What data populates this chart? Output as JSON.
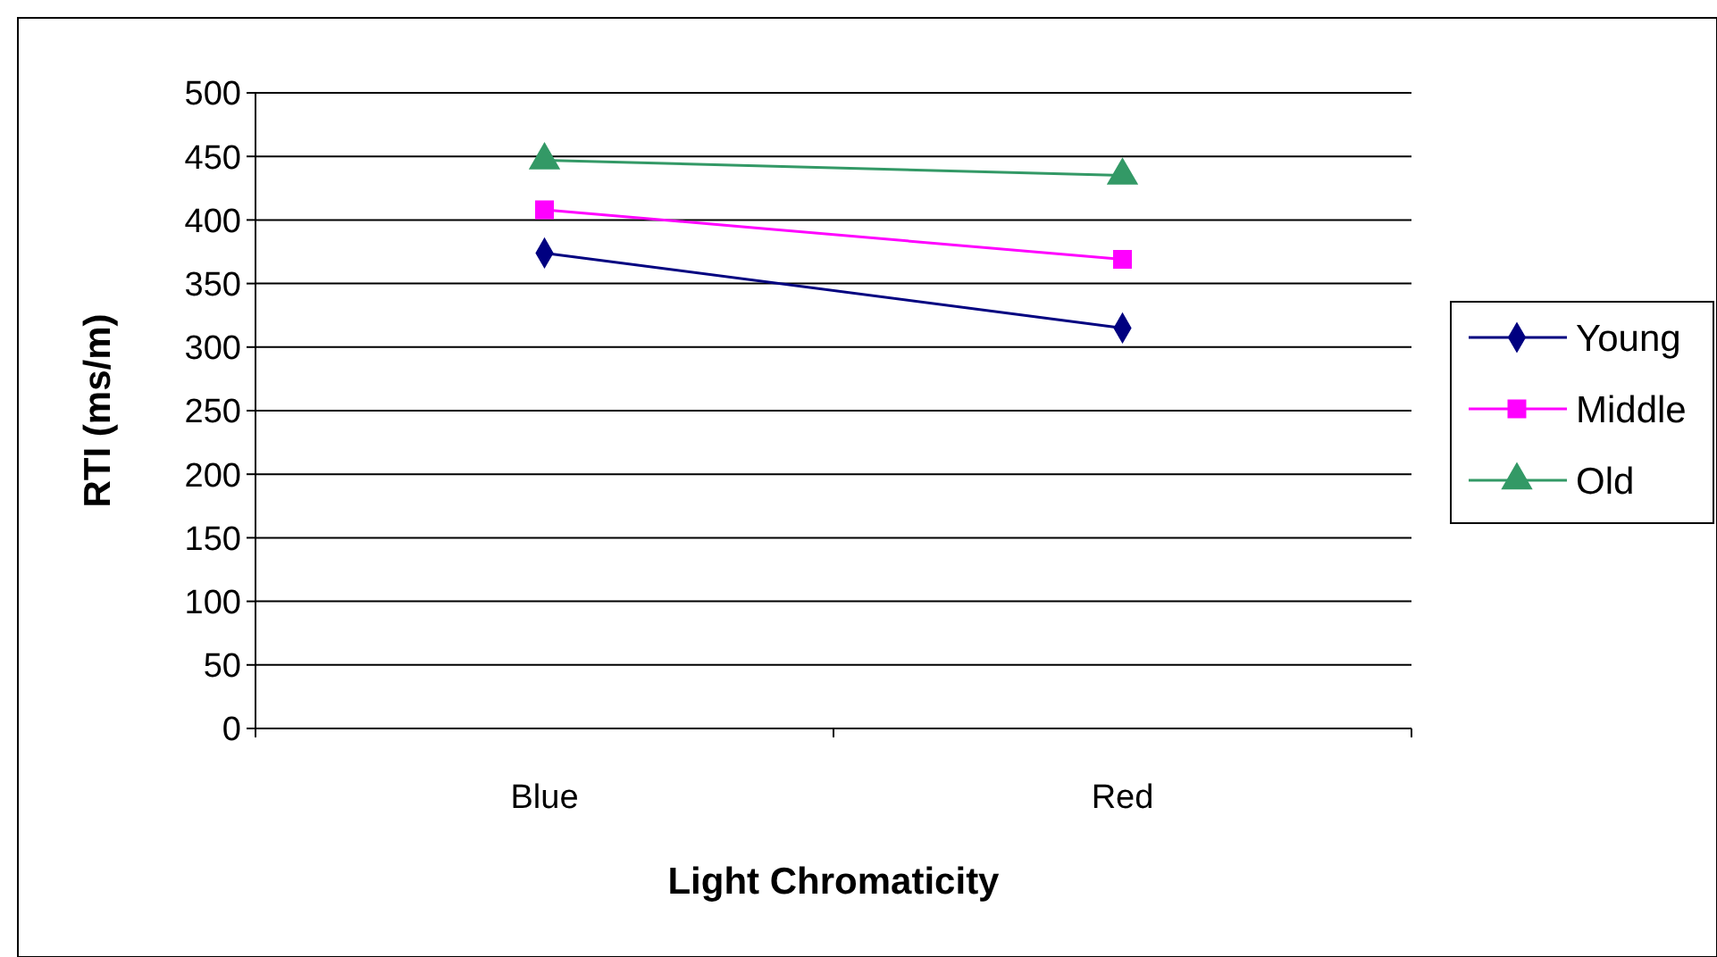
{
  "chart_data": {
    "type": "line",
    "xlabel": "Light Chromaticity",
    "ylabel": "RTI (ms/m)",
    "categories": [
      "Blue",
      "Red"
    ],
    "series": [
      {
        "name": "Young",
        "color": "#000080",
        "values": [
          374,
          315
        ],
        "marker": "diamond"
      },
      {
        "name": "Middle",
        "color": "#ff00ff",
        "values": [
          408,
          369
        ],
        "marker": "square"
      },
      {
        "name": "Old",
        "color": "#339966",
        "values": [
          447,
          435
        ],
        "marker": "triangle"
      }
    ],
    "ylim": [
      0,
      500
    ],
    "yticks": [
      0,
      50,
      100,
      150,
      200,
      250,
      300,
      350,
      400,
      450,
      500
    ],
    "grid": "y",
    "legend": "right"
  }
}
